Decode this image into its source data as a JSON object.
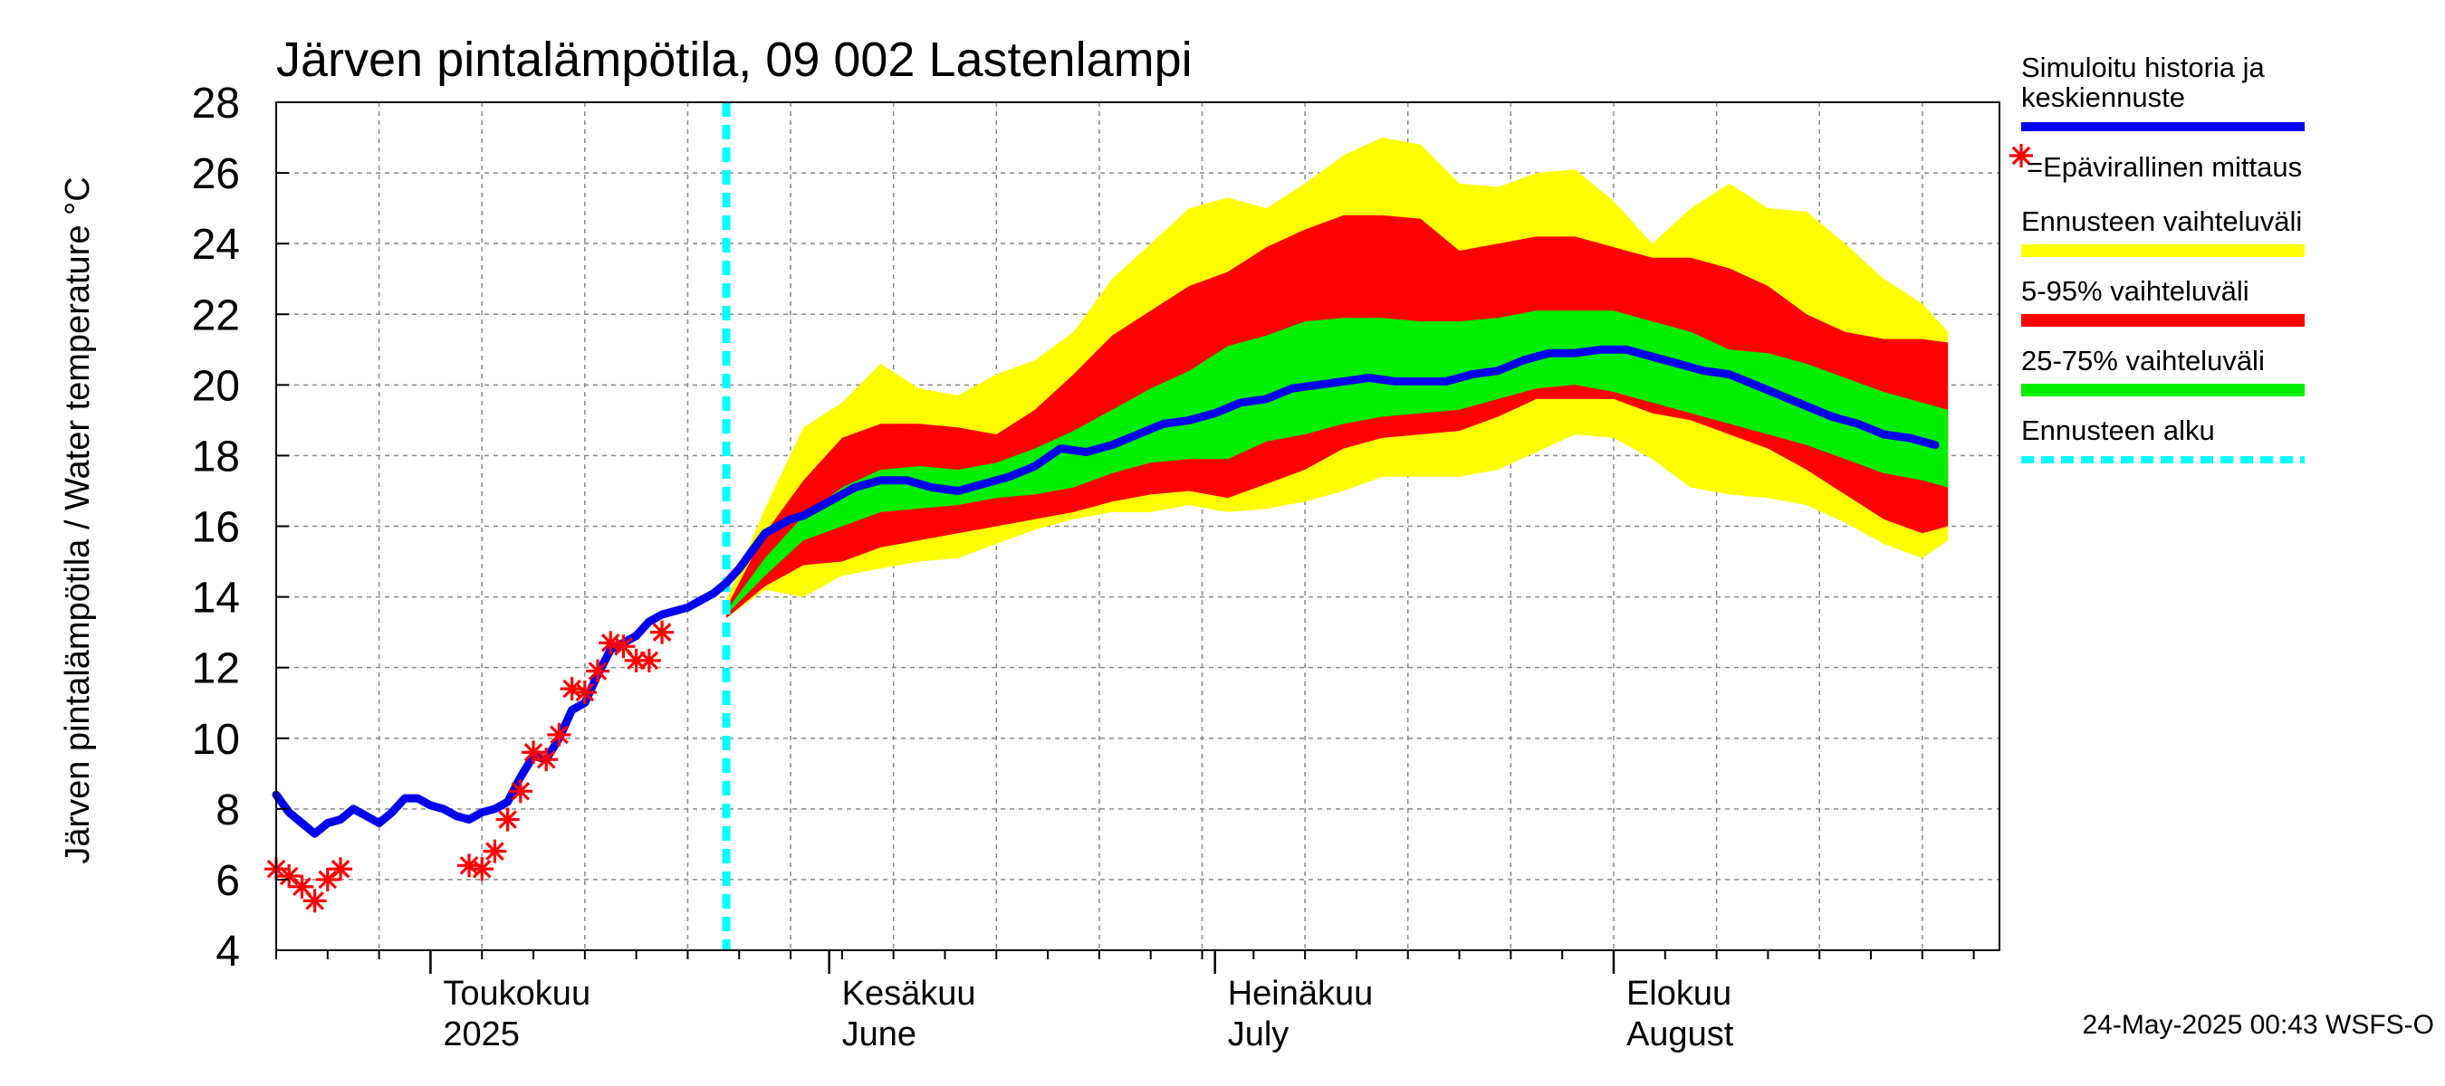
{
  "title": "Järven pintalämpötila, 09 002 Lastenlampi",
  "footer": "24-May-2025 00:43 WSFS-O",
  "colors": {
    "history": "#0000ee",
    "measurement": "#ff0000",
    "range_full": "#ffff00",
    "range_5_95": "#ff0000",
    "range_25_75": "#00ee00",
    "forecast_start": "#00ffff",
    "grid": "#888888"
  },
  "legend": {
    "history_line1": "Simuloitu historia ja",
    "history_line2": "keskiennuste",
    "measurement": "=Epävirallinen mittaus",
    "range_full": "Ennusteen vaihteluväli",
    "range_5_95": "5-95% vaihteluväli",
    "range_25_75": "25-75% vaihteluväli",
    "forecast_start": "Ennusteen alku"
  },
  "chart_data": {
    "type": "line",
    "title": "Järven pintalämpötila, 09 002 Lastenlampi",
    "ylabel": "Järven pintalämpötila / Water temperature °C",
    "ylim": [
      4,
      28
    ],
    "yticks": [
      4,
      6,
      8,
      10,
      12,
      14,
      16,
      18,
      20,
      22,
      24,
      26,
      28
    ],
    "xlim": [
      "2025-04-19",
      "2025-08-31"
    ],
    "grid": true,
    "legend_position": "right",
    "x_labels": [
      {
        "date": "2025-05-01",
        "line1": "Toukokuu",
        "line2": "2025"
      },
      {
        "date": "2025-06-01",
        "line1": "Kesäkuu",
        "line2": "June"
      },
      {
        "date": "2025-07-01",
        "line1": "Heinäkuu",
        "line2": "July"
      },
      {
        "date": "2025-08-01",
        "line1": "Elokuu",
        "line2": "August"
      }
    ],
    "forecast_start": "2025-05-24",
    "history_series": {
      "name": "Simuloitu historia ja keskiennuste",
      "points": [
        [
          "2025-04-19",
          8.4
        ],
        [
          "2025-04-20",
          7.9
        ],
        [
          "2025-04-21",
          7.6
        ],
        [
          "2025-04-22",
          7.3
        ],
        [
          "2025-04-23",
          7.6
        ],
        [
          "2025-04-24",
          7.7
        ],
        [
          "2025-04-25",
          8.0
        ],
        [
          "2025-04-26",
          7.8
        ],
        [
          "2025-04-27",
          7.6
        ],
        [
          "2025-04-28",
          7.9
        ],
        [
          "2025-04-29",
          8.3
        ],
        [
          "2025-04-30",
          8.3
        ],
        [
          "2025-05-01",
          8.1
        ],
        [
          "2025-05-02",
          8.0
        ],
        [
          "2025-05-03",
          7.8
        ],
        [
          "2025-05-04",
          7.7
        ],
        [
          "2025-05-05",
          7.9
        ],
        [
          "2025-05-06",
          8.0
        ],
        [
          "2025-05-07",
          8.2
        ],
        [
          "2025-05-08",
          8.9
        ],
        [
          "2025-05-09",
          9.5
        ],
        [
          "2025-05-10",
          9.4
        ],
        [
          "2025-05-11",
          10.0
        ],
        [
          "2025-05-12",
          10.8
        ],
        [
          "2025-05-13",
          11.0
        ],
        [
          "2025-05-14",
          11.8
        ],
        [
          "2025-05-15",
          12.5
        ],
        [
          "2025-05-16",
          12.7
        ],
        [
          "2025-05-17",
          12.9
        ],
        [
          "2025-05-18",
          13.3
        ],
        [
          "2025-05-19",
          13.5
        ],
        [
          "2025-05-20",
          13.6
        ],
        [
          "2025-05-21",
          13.7
        ],
        [
          "2025-05-22",
          13.9
        ],
        [
          "2025-05-23",
          14.1
        ],
        [
          "2025-05-24",
          14.4
        ],
        [
          "2025-05-25",
          14.8
        ],
        [
          "2025-05-26",
          15.3
        ],
        [
          "2025-05-27",
          15.8
        ],
        [
          "2025-05-28",
          16.0
        ],
        [
          "2025-05-29",
          16.2
        ],
        [
          "2025-05-30",
          16.3
        ],
        [
          "2025-05-31",
          16.5
        ],
        [
          "2025-06-01",
          16.7
        ],
        [
          "2025-06-03",
          17.1
        ],
        [
          "2025-06-05",
          17.3
        ],
        [
          "2025-06-07",
          17.3
        ],
        [
          "2025-06-09",
          17.1
        ],
        [
          "2025-06-11",
          17.0
        ],
        [
          "2025-06-13",
          17.2
        ],
        [
          "2025-06-15",
          17.4
        ],
        [
          "2025-06-17",
          17.7
        ],
        [
          "2025-06-19",
          18.2
        ],
        [
          "2025-06-21",
          18.1
        ],
        [
          "2025-06-23",
          18.3
        ],
        [
          "2025-06-25",
          18.6
        ],
        [
          "2025-06-27",
          18.9
        ],
        [
          "2025-06-29",
          19.0
        ],
        [
          "2025-07-01",
          19.2
        ],
        [
          "2025-07-03",
          19.5
        ],
        [
          "2025-07-05",
          19.6
        ],
        [
          "2025-07-07",
          19.9
        ],
        [
          "2025-07-09",
          20.0
        ],
        [
          "2025-07-11",
          20.1
        ],
        [
          "2025-07-13",
          20.2
        ],
        [
          "2025-07-15",
          20.1
        ],
        [
          "2025-07-17",
          20.1
        ],
        [
          "2025-07-19",
          20.1
        ],
        [
          "2025-07-21",
          20.3
        ],
        [
          "2025-07-23",
          20.4
        ],
        [
          "2025-07-25",
          20.7
        ],
        [
          "2025-07-27",
          20.9
        ],
        [
          "2025-07-29",
          20.9
        ],
        [
          "2025-07-31",
          21.0
        ],
        [
          "2025-08-02",
          21.0
        ],
        [
          "2025-08-04",
          20.8
        ],
        [
          "2025-08-06",
          20.6
        ],
        [
          "2025-08-08",
          20.4
        ],
        [
          "2025-08-10",
          20.3
        ],
        [
          "2025-08-12",
          20.0
        ],
        [
          "2025-08-14",
          19.7
        ],
        [
          "2025-08-16",
          19.4
        ],
        [
          "2025-08-18",
          19.1
        ],
        [
          "2025-08-20",
          18.9
        ],
        [
          "2025-08-22",
          18.6
        ],
        [
          "2025-08-24",
          18.5
        ],
        [
          "2025-08-26",
          18.3
        ]
      ]
    },
    "measurements": {
      "name": "Epävirallinen mittaus",
      "points": [
        [
          "2025-04-19",
          6.3
        ],
        [
          "2025-04-20",
          6.1
        ],
        [
          "2025-04-21",
          5.8
        ],
        [
          "2025-04-22",
          5.4
        ],
        [
          "2025-04-23",
          6.0
        ],
        [
          "2025-04-24",
          6.3
        ],
        [
          "2025-05-04",
          6.4
        ],
        [
          "2025-05-05",
          6.3
        ],
        [
          "2025-05-06",
          6.8
        ],
        [
          "2025-05-07",
          7.7
        ],
        [
          "2025-05-08",
          8.5
        ],
        [
          "2025-05-09",
          9.6
        ],
        [
          "2025-05-10",
          9.4
        ],
        [
          "2025-05-11",
          10.1
        ],
        [
          "2025-05-12",
          11.4
        ],
        [
          "2025-05-13",
          11.3
        ],
        [
          "2025-05-14",
          11.9
        ],
        [
          "2025-05-15",
          12.7
        ],
        [
          "2025-05-16",
          12.6
        ],
        [
          "2025-05-17",
          12.2
        ],
        [
          "2025-05-18",
          12.2
        ],
        [
          "2025-05-19",
          13.0
        ]
      ]
    },
    "bands": {
      "x": [
        "2025-05-24",
        "2025-05-27",
        "2025-05-30",
        "2025-06-02",
        "2025-06-05",
        "2025-06-08",
        "2025-06-11",
        "2025-06-14",
        "2025-06-17",
        "2025-06-20",
        "2025-06-23",
        "2025-06-26",
        "2025-06-29",
        "2025-07-02",
        "2025-07-05",
        "2025-07-08",
        "2025-07-11",
        "2025-07-14",
        "2025-07-17",
        "2025-07-20",
        "2025-07-23",
        "2025-07-26",
        "2025-07-29",
        "2025-08-01",
        "2025-08-04",
        "2025-08-07",
        "2025-08-10",
        "2025-08-13",
        "2025-08-16",
        "2025-08-19",
        "2025-08-22",
        "2025-08-25",
        "2025-08-27"
      ],
      "full_max": [
        13.9,
        16.5,
        18.8,
        19.5,
        20.6,
        19.9,
        19.7,
        20.3,
        20.7,
        21.5,
        23.0,
        24.0,
        25.0,
        25.3,
        25.0,
        25.7,
        26.5,
        27.0,
        26.8,
        25.7,
        25.6,
        26.0,
        26.1,
        25.2,
        24.0,
        25.0,
        25.7,
        25.0,
        24.9,
        24.0,
        23.0,
        22.3,
        21.5
      ],
      "p95": [
        13.7,
        15.8,
        17.3,
        18.5,
        18.9,
        18.9,
        18.8,
        18.6,
        19.3,
        20.3,
        21.4,
        22.1,
        22.8,
        23.2,
        23.9,
        24.4,
        24.8,
        24.8,
        24.7,
        23.8,
        24.0,
        24.2,
        24.2,
        23.9,
        23.6,
        23.6,
        23.3,
        22.8,
        22.0,
        21.5,
        21.3,
        21.3,
        21.2
      ],
      "p75": [
        13.6,
        15.1,
        16.3,
        17.1,
        17.6,
        17.7,
        17.6,
        17.8,
        18.2,
        18.7,
        19.3,
        19.9,
        20.4,
        21.1,
        21.4,
        21.8,
        21.9,
        21.9,
        21.8,
        21.8,
        21.9,
        22.1,
        22.1,
        22.1,
        21.8,
        21.5,
        21.0,
        20.9,
        20.6,
        20.2,
        19.8,
        19.5,
        19.3
      ],
      "p25": [
        13.5,
        14.6,
        15.6,
        16.0,
        16.4,
        16.5,
        16.6,
        16.8,
        16.9,
        17.1,
        17.5,
        17.8,
        17.9,
        17.9,
        18.4,
        18.6,
        18.9,
        19.1,
        19.2,
        19.3,
        19.6,
        19.9,
        20.0,
        19.8,
        19.5,
        19.2,
        18.9,
        18.6,
        18.3,
        17.9,
        17.5,
        17.3,
        17.1
      ],
      "p5": [
        13.4,
        14.3,
        14.9,
        15.0,
        15.4,
        15.6,
        15.8,
        16.0,
        16.2,
        16.4,
        16.7,
        16.9,
        17.0,
        16.8,
        17.2,
        17.6,
        18.2,
        18.5,
        18.6,
        18.7,
        19.1,
        19.6,
        19.6,
        19.6,
        19.2,
        19.0,
        18.6,
        18.2,
        17.6,
        16.9,
        16.2,
        15.8,
        16.0
      ],
      "full_min": [
        13.4,
        14.2,
        14.0,
        14.6,
        14.8,
        15.0,
        15.1,
        15.5,
        15.9,
        16.2,
        16.4,
        16.4,
        16.6,
        16.4,
        16.5,
        16.7,
        17.0,
        17.4,
        17.4,
        17.4,
        17.6,
        18.1,
        18.6,
        18.5,
        17.9,
        17.1,
        16.9,
        16.8,
        16.6,
        16.1,
        15.5,
        15.1,
        15.6
      ]
    }
  }
}
